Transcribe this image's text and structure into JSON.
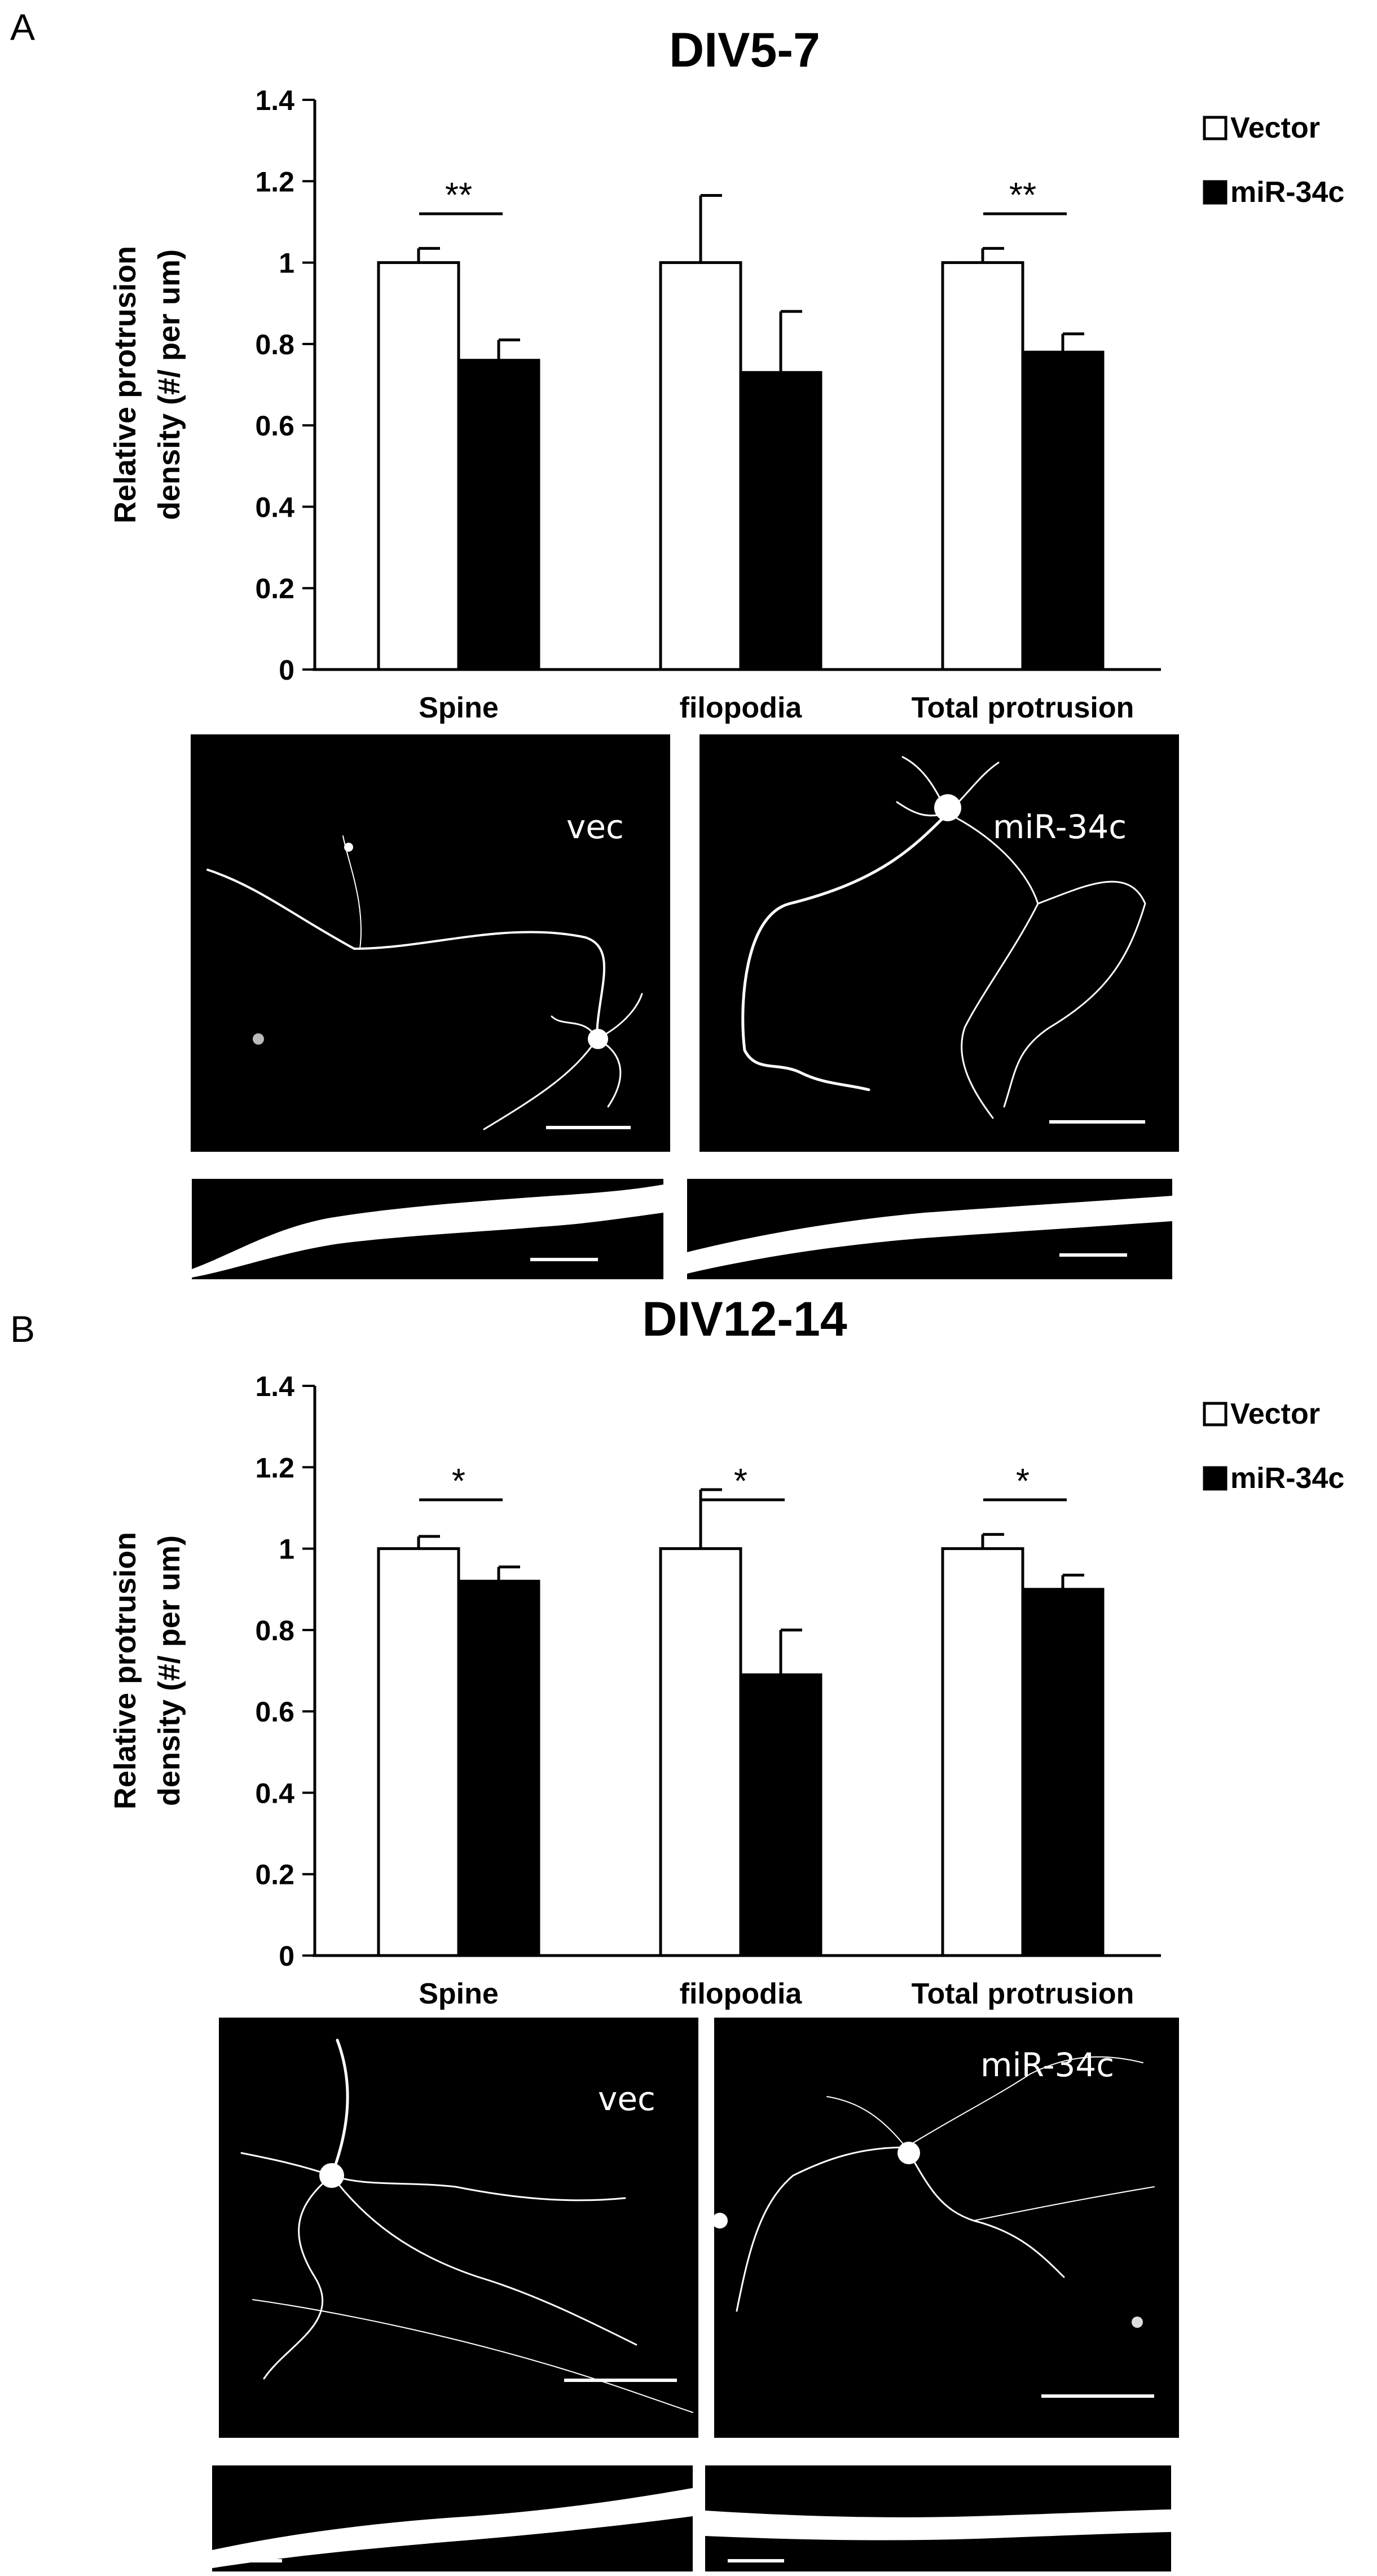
{
  "panels": [
    {
      "letter": "A",
      "chart_data": {
        "type": "bar",
        "title": "DIV5-7",
        "ylabel": "Relative protrusion density (#/ per um)",
        "ylabel_lines": [
          "Relative protrusion",
          "density (#/ per um)"
        ],
        "categories": [
          "Spine",
          "filopodia",
          "Total protrusion"
        ],
        "ylim": [
          0,
          1.4
        ],
        "yticks": [
          "0",
          "0.2",
          "0.4",
          "0.6",
          "0.8",
          "1",
          "1.2",
          "1.4"
        ],
        "series": [
          {
            "name": "Vector",
            "color": "#ffffff",
            "values": [
              1.0,
              1.0,
              1.0
            ],
            "errors": [
              0.035,
              0.165,
              0.035
            ]
          },
          {
            "name": "miR-34c",
            "color": "#000000",
            "values": [
              0.76,
              0.73,
              0.78
            ],
            "errors": [
              0.05,
              0.15,
              0.045
            ]
          }
        ],
        "significance": [
          "**",
          "",
          "**"
        ],
        "legend": "top-right"
      },
      "images": {
        "left_label": "vec",
        "right_label": "miR-34c"
      }
    },
    {
      "letter": "B",
      "chart_data": {
        "type": "bar",
        "title": "DIV12-14",
        "ylabel": "Relative protrusion density (#/ per um)",
        "ylabel_lines": [
          "Relative protrusion",
          "density (#/ per um)"
        ],
        "categories": [
          "Spine",
          "filopodia",
          "Total protrusion"
        ],
        "ylim": [
          0,
          1.4
        ],
        "yticks": [
          "0",
          "0.2",
          "0.4",
          "0.6",
          "0.8",
          "1",
          "1.2",
          "1.4"
        ],
        "series": [
          {
            "name": "Vector",
            "color": "#ffffff",
            "values": [
              1.0,
              1.0,
              1.0
            ],
            "errors": [
              0.03,
              0.145,
              0.035
            ]
          },
          {
            "name": "miR-34c",
            "color": "#000000",
            "values": [
              0.92,
              0.69,
              0.9
            ],
            "errors": [
              0.035,
              0.11,
              0.035
            ]
          }
        ],
        "significance": [
          "*",
          "*",
          "*"
        ],
        "legend": "top-right"
      },
      "images": {
        "left_label": "vec",
        "right_label": "miR-34c"
      }
    }
  ]
}
